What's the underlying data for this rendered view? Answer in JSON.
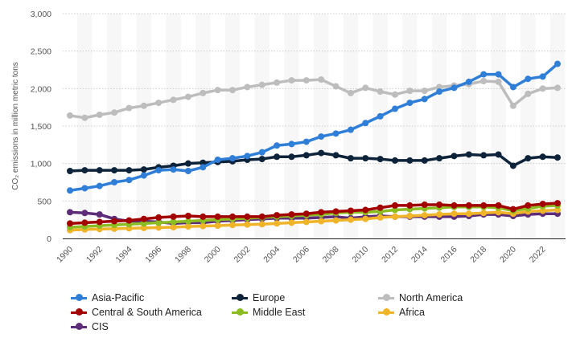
{
  "chart_data": {
    "type": "line",
    "ylabel": "CO₂ emissions in million metric tons",
    "xlabel": "",
    "ylim": [
      0,
      3000
    ],
    "yticks": [
      "0",
      "500",
      "1,000",
      "1,500",
      "2,000",
      "2,500",
      "3,000"
    ],
    "xticks": [
      "1990",
      "1992",
      "1994",
      "1996",
      "1998",
      "2000",
      "2002",
      "2004",
      "2006",
      "2008",
      "2010",
      "2012",
      "2014",
      "2016",
      "2018",
      "2020",
      "2022"
    ],
    "grid": true,
    "legend_position": "bottom",
    "x": [
      1990,
      1991,
      1992,
      1993,
      1994,
      1995,
      1996,
      1997,
      1998,
      1999,
      2000,
      2001,
      2002,
      2003,
      2004,
      2005,
      2006,
      2007,
      2008,
      2009,
      2010,
      2011,
      2012,
      2013,
      2014,
      2015,
      2016,
      2017,
      2018,
      2019,
      2020,
      2021,
      2022,
      2023
    ],
    "series": [
      {
        "name": "Asia-Pacific",
        "color": "#2f7ed8",
        "values": [
          640,
          670,
          700,
          750,
          780,
          840,
          910,
          920,
          900,
          950,
          1050,
          1070,
          1100,
          1150,
          1240,
          1260,
          1290,
          1360,
          1400,
          1450,
          1540,
          1630,
          1730,
          1810,
          1860,
          1960,
          2010,
          2090,
          2190,
          2190,
          2020,
          2130,
          2160,
          2330
        ]
      },
      {
        "name": "Europe",
        "color": "#0d233a",
        "values": [
          900,
          910,
          910,
          910,
          910,
          920,
          950,
          970,
          1000,
          1010,
          1020,
          1030,
          1050,
          1060,
          1090,
          1090,
          1110,
          1140,
          1110,
          1070,
          1070,
          1060,
          1040,
          1040,
          1040,
          1070,
          1100,
          1120,
          1110,
          1120,
          970,
          1070,
          1090,
          1080
        ]
      },
      {
        "name": "North America",
        "color": "#bdbdbd",
        "values": [
          1640,
          1610,
          1650,
          1680,
          1740,
          1770,
          1810,
          1850,
          1890,
          1940,
          1980,
          1980,
          2020,
          2050,
          2080,
          2110,
          2110,
          2120,
          2030,
          1940,
          2010,
          1960,
          1920,
          1970,
          1970,
          2020,
          2040,
          2060,
          2100,
          2090,
          1770,
          1930,
          2000,
          2010
        ]
      },
      {
        "name": "Central & South America",
        "color": "#a30000",
        "values": [
          200,
          210,
          220,
          230,
          240,
          260,
          280,
          290,
          300,
          290,
          290,
          290,
          290,
          290,
          310,
          320,
          330,
          350,
          360,
          370,
          380,
          410,
          440,
          440,
          450,
          450,
          440,
          440,
          440,
          440,
          390,
          440,
          460,
          470
        ]
      },
      {
        "name": "Middle East",
        "color": "#8bbc21",
        "values": [
          150,
          160,
          170,
          180,
          190,
          200,
          210,
          220,
          230,
          240,
          250,
          260,
          270,
          280,
          290,
          300,
          310,
          320,
          340,
          350,
          350,
          360,
          380,
          390,
          400,
          410,
          420,
          420,
          420,
          410,
          370,
          400,
          430,
          440
        ]
      },
      {
        "name": "Africa",
        "color": "#f0b429",
        "values": [
          110,
          120,
          125,
          130,
          135,
          140,
          145,
          150,
          160,
          165,
          170,
          180,
          185,
          190,
          200,
          210,
          220,
          230,
          240,
          250,
          260,
          280,
          290,
          300,
          310,
          320,
          330,
          330,
          340,
          350,
          330,
          360,
          370,
          380
        ]
      },
      {
        "name": "CIS",
        "color": "#5e2d79",
        "values": [
          350,
          340,
          320,
          260,
          230,
          230,
          220,
          200,
          210,
          210,
          230,
          240,
          250,
          260,
          270,
          270,
          270,
          280,
          290,
          270,
          290,
          300,
          290,
          290,
          290,
          290,
          290,
          300,
          320,
          320,
          300,
          320,
          330,
          330
        ]
      }
    ]
  }
}
